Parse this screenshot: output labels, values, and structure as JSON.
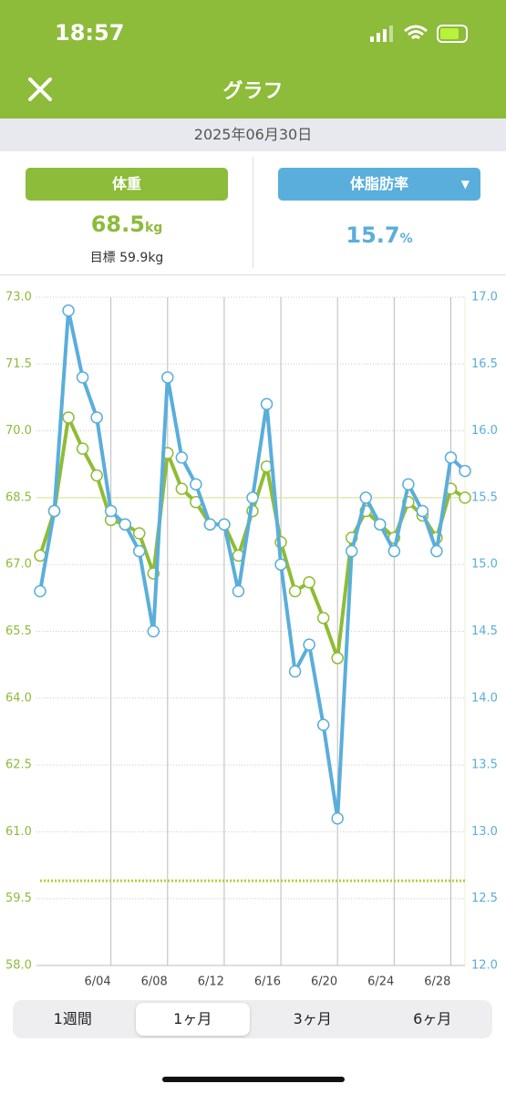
{
  "status": {
    "time": "18:57"
  },
  "header": {
    "title": "グラフ"
  },
  "date": "2025年06月30日",
  "stats": {
    "weight": {
      "label": "体重",
      "value": 68.5,
      "unit": "kg"
    },
    "goal": {
      "label": "目標",
      "value": 59.9,
      "unit": "kg"
    },
    "fat": {
      "label": "体脂肪率",
      "value": 15.7,
      "unit": "%"
    }
  },
  "chart_data": {
    "type": "line",
    "categories": [
      null,
      null,
      null,
      null,
      null,
      "6/04",
      null,
      null,
      null,
      "6/08",
      null,
      null,
      null,
      "6/12",
      null,
      null,
      null,
      "6/16",
      null,
      null,
      null,
      "6/20",
      null,
      null,
      null,
      "6/24",
      null,
      null,
      null,
      "6/28",
      null
    ],
    "series": [
      {
        "color": "#8fbc35",
        "axis": "y",
        "values": [
          67.2,
          68.2,
          70.3,
          69.6,
          69.0,
          68.0,
          67.9,
          67.7,
          66.8,
          69.5,
          68.7,
          68.4,
          67.9,
          67.9,
          67.2,
          68.2,
          69.2,
          67.5,
          66.4,
          66.6,
          65.8,
          64.9,
          67.6,
          68.2,
          67.9,
          67.6,
          68.4,
          68.1,
          67.6,
          68.7,
          68.5
        ]
      },
      {
        "color": "#5aaedb",
        "axis": "y2",
        "values": [
          14.8,
          15.4,
          16.9,
          16.4,
          16.1,
          15.4,
          15.3,
          15.1,
          14.5,
          16.4,
          15.8,
          15.6,
          15.3,
          15.3,
          14.8,
          15.5,
          16.2,
          15.0,
          14.2,
          14.4,
          13.8,
          13.1,
          15.1,
          15.5,
          15.3,
          15.1,
          15.6,
          15.4,
          15.1,
          15.8,
          15.7
        ]
      }
    ],
    "ylim": [
      58,
      73
    ],
    "yticks": [
      {
        "value": 58,
        "label": "58.0"
      },
      59.5,
      {
        "value": 61,
        "label": "61.0"
      },
      62.5,
      {
        "value": 64,
        "label": "64.0"
      },
      65.5,
      {
        "value": 67,
        "label": "67.0"
      },
      68.5,
      {
        "value": 70,
        "label": "70.0"
      },
      71.5,
      {
        "value": 73,
        "label": "73.0"
      }
    ],
    "y2lim": [
      12,
      17
    ],
    "y2ticks": [
      {
        "value": 12,
        "label": "12.0"
      },
      12.5,
      {
        "value": 13,
        "label": "13.0"
      },
      13.5,
      {
        "value": 14,
        "label": "14.0"
      },
      14.5,
      {
        "value": 15,
        "label": "15.0"
      },
      15.5,
      {
        "value": 16,
        "label": "16.0"
      },
      16.5,
      {
        "value": 17,
        "label": "17.0"
      }
    ],
    "grid": true
  },
  "tabs": {
    "items": [
      "1週間",
      "1ヶ月",
      "3ヶ月",
      "6ヶ月"
    ],
    "selected": 1
  }
}
